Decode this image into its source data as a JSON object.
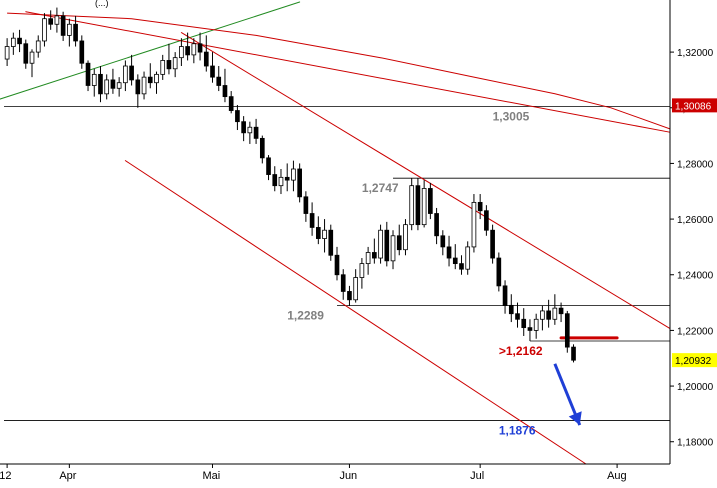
{
  "chart_data": {
    "type": "candlestick",
    "instrument_header": "(...)",
    "x_ticks": [
      {
        "label": "'12",
        "index": 0
      },
      {
        "label": "Apr",
        "index": 10
      },
      {
        "label": "Mai",
        "index": 33
      },
      {
        "label": "Jun",
        "index": 55
      },
      {
        "label": "Jul",
        "index": 76
      },
      {
        "label": "Aug",
        "index": 98
      }
    ],
    "y_axis": {
      "range": [
        1.172,
        1.338
      ],
      "ticks": [
        "1,32000",
        "1,30000",
        "1,28000",
        "1,26000",
        "1,24000",
        "1,22000",
        "1,20000",
        "1,18000"
      ],
      "tick_values": [
        1.32,
        1.3,
        1.28,
        1.26,
        1.24,
        1.22,
        1.2,
        1.18
      ],
      "price_tags": [
        {
          "label": "1,30086",
          "value": 1.30086,
          "color": "#cc0000"
        },
        {
          "label": "1,20932",
          "value": 1.20932,
          "color": "#ffff00"
        }
      ]
    },
    "grid": false,
    "candles": [
      [
        1.3175,
        1.325,
        1.315,
        1.322
      ],
      [
        1.322,
        1.327,
        1.319,
        1.325
      ],
      [
        1.325,
        1.328,
        1.32,
        1.323
      ],
      [
        1.323,
        1.3245,
        1.314,
        1.316
      ],
      [
        1.316,
        1.321,
        1.311,
        1.32
      ],
      [
        1.32,
        1.326,
        1.318,
        1.324
      ],
      [
        1.324,
        1.334,
        1.322,
        1.332
      ],
      [
        1.332,
        1.335,
        1.328,
        1.33
      ],
      [
        1.33,
        1.336,
        1.327,
        1.333
      ],
      [
        1.333,
        1.3345,
        1.324,
        1.326
      ],
      [
        1.326,
        1.332,
        1.322,
        1.33
      ],
      [
        1.33,
        1.333,
        1.322,
        1.324
      ],
      [
        1.324,
        1.326,
        1.314,
        1.316
      ],
      [
        1.316,
        1.317,
        1.306,
        1.308
      ],
      [
        1.308,
        1.314,
        1.304,
        1.312
      ],
      [
        1.312,
        1.315,
        1.302,
        1.305
      ],
      [
        1.305,
        1.312,
        1.303,
        1.31
      ],
      [
        1.31,
        1.314,
        1.305,
        1.307
      ],
      [
        1.307,
        1.311,
        1.304,
        1.309
      ],
      [
        1.309,
        1.317,
        1.306,
        1.315
      ],
      [
        1.315,
        1.319,
        1.308,
        1.31
      ],
      [
        1.31,
        1.312,
        1.3,
        1.305
      ],
      [
        1.305,
        1.313,
        1.303,
        1.311
      ],
      [
        1.311,
        1.316,
        1.307,
        1.309
      ],
      [
        1.309,
        1.313,
        1.305,
        1.312
      ],
      [
        1.312,
        1.319,
        1.31,
        1.317
      ],
      [
        1.317,
        1.323,
        1.312,
        1.314
      ],
      [
        1.314,
        1.32,
        1.311,
        1.318
      ],
      [
        1.318,
        1.325,
        1.315,
        1.322
      ],
      [
        1.322,
        1.327,
        1.317,
        1.319
      ],
      [
        1.319,
        1.325,
        1.316,
        1.323
      ],
      [
        1.323,
        1.327,
        1.317,
        1.32
      ],
      [
        1.32,
        1.326,
        1.313,
        1.315
      ],
      [
        1.315,
        1.32,
        1.309,
        1.311
      ],
      [
        1.311,
        1.315,
        1.306,
        1.308
      ],
      [
        1.308,
        1.314,
        1.302,
        1.304
      ],
      [
        1.304,
        1.306,
        1.298,
        1.299
      ],
      [
        1.299,
        1.301,
        1.292,
        1.295
      ],
      [
        1.295,
        1.297,
        1.288,
        1.291
      ],
      [
        1.291,
        1.295,
        1.287,
        1.293
      ],
      [
        1.293,
        1.296,
        1.287,
        1.289
      ],
      [
        1.289,
        1.29,
        1.28,
        1.282
      ],
      [
        1.282,
        1.283,
        1.274,
        1.276
      ],
      [
        1.276,
        1.279,
        1.27,
        1.272
      ],
      [
        1.272,
        1.278,
        1.269,
        1.275
      ],
      [
        1.275,
        1.28,
        1.27,
        1.274
      ],
      [
        1.274,
        1.281,
        1.27,
        1.278
      ],
      [
        1.278,
        1.28,
        1.266,
        1.268
      ],
      [
        1.268,
        1.27,
        1.259,
        1.262
      ],
      [
        1.262,
        1.266,
        1.254,
        1.257
      ],
      [
        1.257,
        1.261,
        1.251,
        1.253
      ],
      [
        1.253,
        1.26,
        1.248,
        1.256
      ],
      [
        1.256,
        1.258,
        1.245,
        1.247
      ],
      [
        1.247,
        1.25,
        1.238,
        1.24
      ],
      [
        1.24,
        1.242,
        1.231,
        1.234
      ],
      [
        1.234,
        1.236,
        1.2289,
        1.231
      ],
      [
        1.231,
        1.242,
        1.23,
        1.239
      ],
      [
        1.239,
        1.246,
        1.235,
        1.244
      ],
      [
        1.244,
        1.25,
        1.24,
        1.248
      ],
      [
        1.248,
        1.253,
        1.244,
        1.246
      ],
      [
        1.246,
        1.258,
        1.244,
        1.256
      ],
      [
        1.256,
        1.259,
        1.243,
        1.245
      ],
      [
        1.245,
        1.256,
        1.242,
        1.254
      ],
      [
        1.254,
        1.258,
        1.247,
        1.249
      ],
      [
        1.249,
        1.26,
        1.247,
        1.258
      ],
      [
        1.258,
        1.2747,
        1.256,
        1.272
      ],
      [
        1.272,
        1.2747,
        1.256,
        1.258
      ],
      [
        1.258,
        1.274,
        1.257,
        1.271
      ],
      [
        1.271,
        1.273,
        1.26,
        1.262
      ],
      [
        1.262,
        1.264,
        1.251,
        1.254
      ],
      [
        1.254,
        1.256,
        1.247,
        1.25
      ],
      [
        1.25,
        1.254,
        1.243,
        1.246
      ],
      [
        1.246,
        1.251,
        1.242,
        1.244
      ],
      [
        1.244,
        1.247,
        1.24,
        1.242
      ],
      [
        1.242,
        1.252,
        1.24,
        1.25
      ],
      [
        1.25,
        1.269,
        1.248,
        1.266
      ],
      [
        1.266,
        1.269,
        1.26,
        1.263
      ],
      [
        1.263,
        1.265,
        1.254,
        1.256
      ],
      [
        1.256,
        1.258,
        1.244,
        1.246
      ],
      [
        1.246,
        1.248,
        1.234,
        1.236
      ],
      [
        1.236,
        1.238,
        1.226,
        1.229
      ],
      [
        1.229,
        1.233,
        1.223,
        1.226
      ],
      [
        1.226,
        1.23,
        1.221,
        1.224
      ],
      [
        1.224,
        1.228,
        1.218,
        1.221
      ],
      [
        1.221,
        1.224,
        1.2162,
        1.22
      ],
      [
        1.22,
        1.226,
        1.217,
        1.224
      ],
      [
        1.224,
        1.229,
        1.22,
        1.227
      ],
      [
        1.227,
        1.231,
        1.221,
        1.224
      ],
      [
        1.224,
        1.233,
        1.222,
        1.228
      ],
      [
        1.228,
        1.23,
        1.223,
        1.226
      ],
      [
        1.226,
        1.227,
        1.212,
        1.214
      ],
      [
        1.214,
        1.215,
        1.2085,
        1.2093
      ]
    ],
    "lines": [
      {
        "kind": "horizontal",
        "value": 1.3005,
        "color": "#000000"
      },
      {
        "kind": "horizontal",
        "value": 1.2747,
        "color": "#000000",
        "from_index": 62
      },
      {
        "kind": "horizontal",
        "value": 1.2289,
        "color": "#000000",
        "from_index": 53
      },
      {
        "kind": "horizontal",
        "value": 1.2162,
        "color": "#000000",
        "from_index": 84
      },
      {
        "kind": "horizontal",
        "value": 1.1876,
        "color": "#000000"
      },
      {
        "kind": "segment",
        "color": "#228b22",
        "points": [
          [
            -2,
            1.3025
          ],
          [
            47,
            1.338
          ]
        ]
      },
      {
        "kind": "segment",
        "color": "#cc0000",
        "points": [
          [
            3,
            1.3345
          ],
          [
            107,
            1.291
          ]
        ]
      },
      {
        "kind": "segment",
        "color": "#cc0000",
        "points": [
          [
            28,
            1.327
          ],
          [
            107,
            1.22
          ]
        ]
      },
      {
        "kind": "segment",
        "color": "#cc0000",
        "points": [
          [
            19,
            1.281
          ],
          [
            93,
            1.172
          ]
        ]
      },
      {
        "kind": "segment",
        "color": "#cc0000",
        "width": 3,
        "points": [
          [
            89,
            1.2173
          ],
          [
            98,
            1.2173
          ]
        ]
      },
      {
        "kind": "curve",
        "color": "#cc0000",
        "points": [
          [
            0,
            1.334
          ],
          [
            20,
            1.332
          ],
          [
            40,
            1.326
          ],
          [
            60,
            1.318
          ],
          [
            75,
            1.311
          ],
          [
            88,
            1.305
          ],
          [
            97,
            1.3
          ],
          [
            107,
            1.292
          ]
        ]
      }
    ],
    "arrow": {
      "color": "#1f3fd6",
      "from": [
        88,
        1.208
      ],
      "to": [
        92,
        1.186
      ]
    },
    "annotations": [
      {
        "text": "1,3005",
        "value": 1.3005,
        "index": 78,
        "color": "#808080"
      },
      {
        "text": "1,2747",
        "value": 1.2747,
        "index": 57,
        "color": "#808080"
      },
      {
        "text": "1,2289",
        "value": 1.2289,
        "index": 45,
        "color": "#808080"
      },
      {
        "text": ">1,2162",
        "value": 1.2162,
        "index": 79,
        "color": "#cc0000"
      },
      {
        "text": "1,1876",
        "value": 1.1876,
        "index": 79,
        "color": "#1f3fd6"
      }
    ]
  }
}
